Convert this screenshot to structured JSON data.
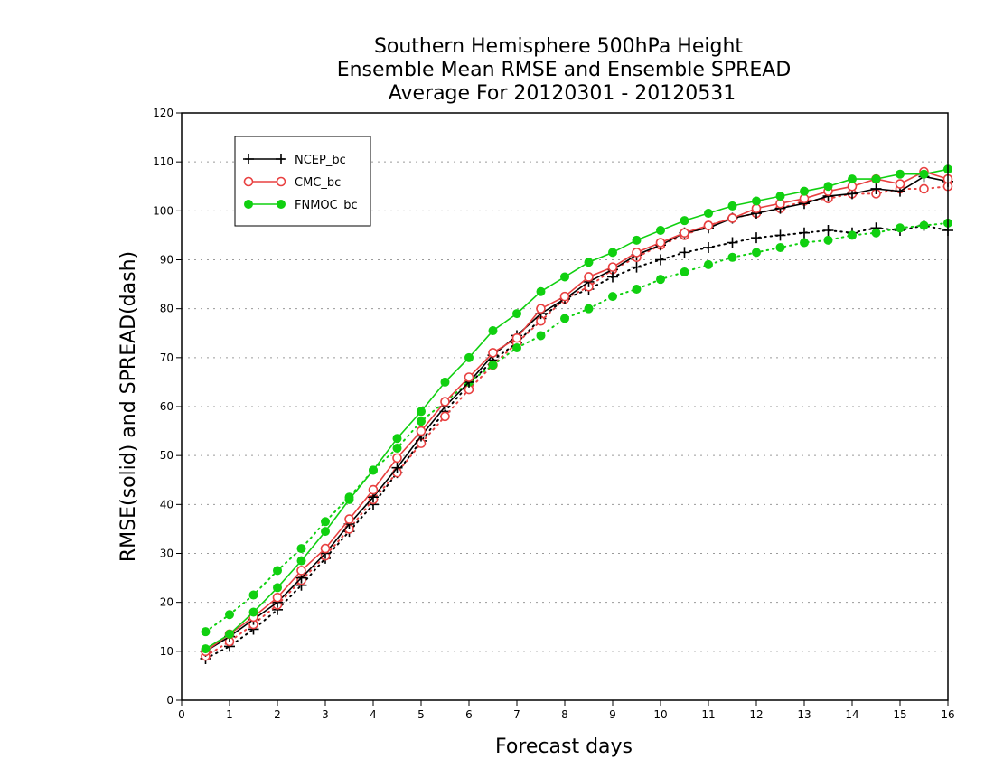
{
  "chart_data": {
    "type": "line",
    "title_lines": [
      "Southern Hemisphere 500hPa Height",
      "Ensemble Mean RMSE and Ensemble SPREAD",
      "Average For 20120301 - 20120531"
    ],
    "xlabel": "Forecast days",
    "ylabel": "RMSE(solid) and SPREAD(dash)",
    "xlim": [
      0,
      16
    ],
    "ylim": [
      0,
      120
    ],
    "xticks": [
      0,
      1,
      2,
      3,
      4,
      5,
      6,
      7,
      8,
      9,
      10,
      11,
      12,
      13,
      14,
      15,
      16
    ],
    "yticks": [
      0,
      10,
      20,
      30,
      40,
      50,
      60,
      70,
      80,
      90,
      100,
      110,
      120
    ],
    "grid": "horizontal dotted",
    "legend_position": "top-left",
    "x": [
      0.5,
      1,
      1.5,
      2,
      2.5,
      3,
      3.5,
      4,
      4.5,
      5,
      5.5,
      6,
      6.5,
      7,
      7.5,
      8,
      8.5,
      9,
      9.5,
      10,
      10.5,
      11,
      11.5,
      12,
      12.5,
      13,
      13.5,
      14,
      14.5,
      15,
      15.5,
      16
    ],
    "series": [
      {
        "name": "NCEP_bc",
        "metric": "RMSE",
        "line_style": "solid",
        "marker": "plus",
        "color": "#000000",
        "values": [
          10,
          13,
          16.5,
          20,
          25,
          30,
          36,
          41.5,
          47.5,
          54,
          60,
          65,
          70.5,
          74.5,
          79,
          82,
          85.5,
          88,
          91,
          93,
          95.5,
          96.5,
          98.5,
          99.5,
          100.5,
          101.5,
          103,
          103.5,
          104.5,
          104,
          107,
          106
        ]
      },
      {
        "name": "CMC_bc",
        "metric": "RMSE",
        "line_style": "solid",
        "marker": "open-circle",
        "color": "#e84040",
        "values": [
          10,
          13.5,
          17,
          21,
          26.5,
          31,
          37,
          43,
          49.5,
          55,
          61,
          66,
          71,
          74,
          80,
          82.5,
          86.5,
          88.5,
          91.5,
          93.5,
          95.5,
          97,
          98.5,
          100.5,
          101.5,
          102.5,
          104,
          105,
          106.5,
          105.5,
          108,
          106.5
        ]
      },
      {
        "name": "FNMOC_bc",
        "metric": "RMSE",
        "line_style": "solid",
        "marker": "filled-circle",
        "color": "#10d010",
        "values": [
          10.5,
          13.5,
          18,
          23,
          28.5,
          34.5,
          41,
          47,
          53.5,
          59,
          65,
          70,
          75.5,
          79,
          83.5,
          86.5,
          89.5,
          91.5,
          94,
          96,
          98,
          99.5,
          101,
          102,
          103,
          104,
          105,
          106.5,
          106.5,
          107.5,
          107.5,
          108.5
        ]
      },
      {
        "name": "NCEP_bc",
        "metric": "SPREAD",
        "line_style": "dotted",
        "marker": "plus",
        "color": "#000000",
        "values": [
          8.5,
          11,
          14.5,
          18.5,
          23.5,
          29,
          34.5,
          40,
          46.5,
          53,
          59,
          64.5,
          69.5,
          73,
          78,
          82,
          84,
          86.5,
          88.5,
          90,
          91.5,
          92.5,
          93.5,
          94.5,
          95,
          95.5,
          96,
          95.5,
          96.5,
          96,
          97,
          96
        ]
      },
      {
        "name": "CMC_bc",
        "metric": "SPREAD",
        "line_style": "dotted",
        "marker": "open-circle",
        "color": "#e84040",
        "values": [
          9,
          12,
          15.5,
          19.5,
          24.5,
          29.5,
          35,
          41,
          46.5,
          52.5,
          58,
          63.5,
          68.5,
          73,
          77.5,
          82,
          84.5,
          88,
          90.5,
          93,
          95,
          97,
          98.5,
          99.5,
          100.5,
          102,
          102.5,
          103.5,
          103.5,
          104.5,
          104.5,
          105
        ]
      },
      {
        "name": "FNMOC_bc",
        "metric": "SPREAD",
        "line_style": "dotted",
        "marker": "filled-circle",
        "color": "#10d010",
        "values": [
          14,
          17.5,
          21.5,
          26.5,
          31,
          36.5,
          41.5,
          47,
          51.5,
          57,
          61,
          65,
          68.5,
          72,
          74.5,
          78,
          80,
          82.5,
          84,
          86,
          87.5,
          89,
          90.5,
          91.5,
          92.5,
          93.5,
          94,
          95,
          95.5,
          96.5,
          97,
          97.5
        ]
      }
    ],
    "legend": [
      {
        "label": "NCEP_bc",
        "marker": "plus",
        "color": "#000000"
      },
      {
        "label": "CMC_bc",
        "marker": "open-circle",
        "color": "#e84040"
      },
      {
        "label": "FNMOC_bc",
        "marker": "filled-circle",
        "color": "#10d010"
      }
    ]
  }
}
